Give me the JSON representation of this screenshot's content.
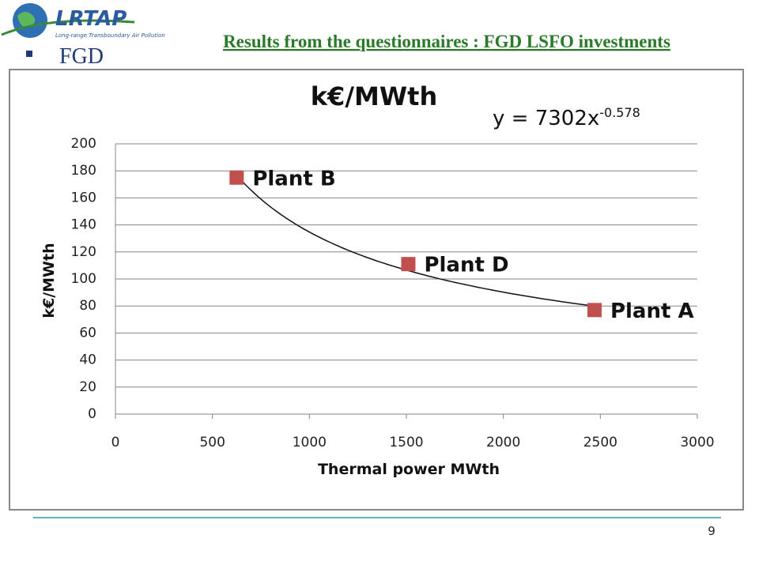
{
  "header": {
    "logo_text": "LRTAP",
    "logo_subtext": "Long-range Transboundary Air Pollution",
    "title": "Results from the questionnaires : FGD LSFO investments",
    "bullet": "FGD"
  },
  "footer": {
    "page_number": "9"
  },
  "chart_data": {
    "type": "scatter",
    "title": "k€/MWth",
    "x_label": "Thermal power MWth",
    "y_label": "k€/MWth",
    "x": [
      625,
      1510,
      2470
    ],
    "values": [
      175,
      111,
      77
    ],
    "point_labels": [
      "Plant B",
      "Plant D",
      "Plant A"
    ],
    "color": "#c0504d",
    "trendline": {
      "coefficient": 7302,
      "exponent": -0.578,
      "equation": "y = 7302x",
      "equation_exponent": "-0.578"
    },
    "xlim": [
      0,
      3000
    ],
    "xticks": [
      0,
      500,
      1000,
      1500,
      2000,
      2500,
      3000
    ],
    "ylim": [
      0,
      200
    ],
    "yticks": [
      0,
      20,
      40,
      60,
      80,
      100,
      120,
      140,
      160,
      180,
      200
    ],
    "grid": true
  }
}
